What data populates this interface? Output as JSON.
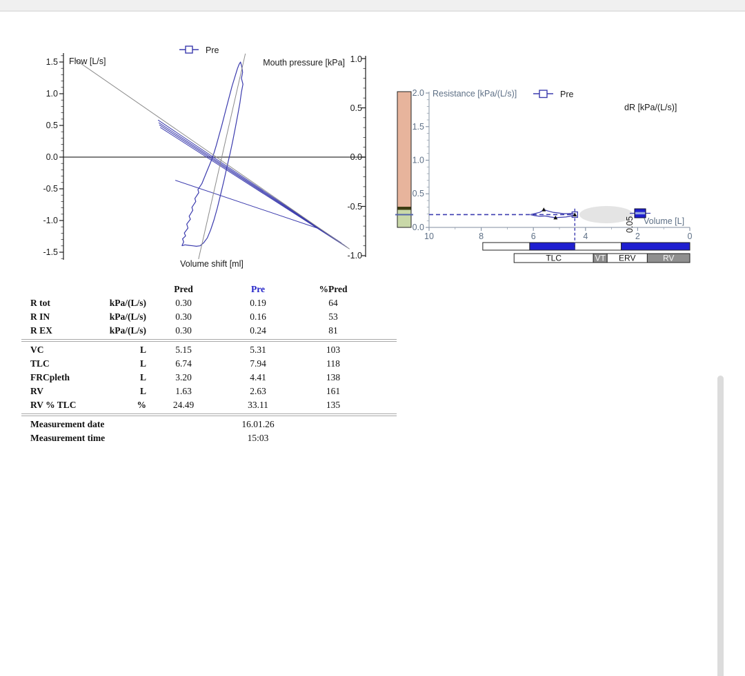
{
  "table": {
    "headers": {
      "pred": "Pred",
      "pre": "Pre",
      "pct": "%Pred"
    },
    "rows": [
      {
        "label": "R tot",
        "unit": "kPa/(L/s)",
        "pred": "0.30",
        "pre": "0.19",
        "pct": "64"
      },
      {
        "label": "R IN",
        "unit": "kPa/(L/s)",
        "pred": "0.30",
        "pre": "0.16",
        "pct": "53"
      },
      {
        "label": "R EX",
        "unit": "kPa/(L/s)",
        "pred": "0.30",
        "pre": "0.24",
        "pct": "81"
      },
      {
        "label": "VC",
        "unit": "L",
        "pred": "5.15",
        "pre": "5.31",
        "pct": "103"
      },
      {
        "label": "TLC",
        "unit": "L",
        "pred": "6.74",
        "pre": "7.94",
        "pct": "118"
      },
      {
        "label": "FRCpleth",
        "unit": "L",
        "pred": "3.20",
        "pre": "4.41",
        "pct": "138"
      },
      {
        "label": "RV",
        "unit": "L",
        "pred": "1.63",
        "pre": "2.63",
        "pct": "161"
      },
      {
        "label": "RV % TLC",
        "unit": "%",
        "pred": "24.49",
        "pre": "33.11",
        "pct": "135"
      }
    ],
    "meta": [
      {
        "label": "Measurement date",
        "value": "16.01.26"
      },
      {
        "label": "Measurement time",
        "value": "15:03"
      }
    ]
  },
  "chart_data": [
    {
      "type": "line",
      "name": "body-plethysmography-loops",
      "legend": "Pre",
      "x": {
        "label": "Volume shift [ml]",
        "note": "no numeric ticks shown; points use normalized 0-1 width",
        "range": [
          0,
          1
        ]
      },
      "y_left": {
        "label": "Flow [L/s]",
        "range": [
          -1.65,
          1.65
        ],
        "ticks": [
          "1.5",
          "1.0",
          "0.5",
          "0.0",
          "-0.5",
          "-1.0",
          "-1.5"
        ]
      },
      "y_right": {
        "label": "Mouth pressure [kPa]",
        "range": [
          -1.08,
          1.08
        ],
        "ticks": [
          "1.0",
          "0.5",
          "0.0",
          "-0.5",
          "-1.0"
        ]
      },
      "series": [
        {
          "name": "Pre mouth-pressure loop",
          "axis": "right",
          "color": "#3a3aad",
          "width": 1.2,
          "points": [
            [
              0.392,
              -0.9
            ],
            [
              0.398,
              -0.86
            ],
            [
              0.394,
              -0.83
            ],
            [
              0.404,
              -0.8
            ],
            [
              0.4,
              -0.77
            ],
            [
              0.412,
              -0.72
            ],
            [
              0.408,
              -0.68
            ],
            [
              0.42,
              -0.63
            ],
            [
              0.416,
              -0.6
            ],
            [
              0.428,
              -0.54
            ],
            [
              0.425,
              -0.51
            ],
            [
              0.438,
              -0.45
            ],
            [
              0.435,
              -0.42
            ],
            [
              0.448,
              -0.36
            ],
            [
              0.445,
              -0.33
            ],
            [
              0.458,
              -0.27
            ],
            [
              0.466,
              -0.21
            ],
            [
              0.474,
              -0.15
            ],
            [
              0.482,
              -0.09
            ],
            [
              0.49,
              -0.03
            ],
            [
              0.498,
              0.04
            ],
            [
              0.506,
              0.12
            ],
            [
              0.514,
              0.21
            ],
            [
              0.524,
              0.32
            ],
            [
              0.534,
              0.44
            ],
            [
              0.546,
              0.58
            ],
            [
              0.558,
              0.72
            ],
            [
              0.568,
              0.82
            ],
            [
              0.576,
              0.9
            ],
            [
              0.581,
              0.94
            ],
            [
              0.586,
              0.965
            ],
            [
              0.59,
              0.92
            ],
            [
              0.593,
              0.86
            ],
            [
              0.589,
              0.8
            ],
            [
              0.594,
              0.74
            ],
            [
              0.589,
              0.66
            ],
            [
              0.584,
              0.55
            ],
            [
              0.577,
              0.43
            ],
            [
              0.569,
              0.3
            ],
            [
              0.56,
              0.16
            ],
            [
              0.551,
              0.03
            ],
            [
              0.541,
              -0.1
            ],
            [
              0.531,
              -0.24
            ],
            [
              0.52,
              -0.38
            ],
            [
              0.509,
              -0.52
            ],
            [
              0.498,
              -0.64
            ],
            [
              0.487,
              -0.74
            ],
            [
              0.476,
              -0.82
            ],
            [
              0.464,
              -0.87
            ],
            [
              0.452,
              -0.9
            ],
            [
              0.44,
              -0.905
            ],
            [
              0.428,
              -0.9
            ],
            [
              0.414,
              -0.895
            ],
            [
              0.402,
              -0.89
            ],
            [
              0.392,
              -0.9
            ]
          ]
        },
        {
          "name": "Pre resistance loop line 1",
          "axis": "left",
          "color": "#3a3aad",
          "width": 1.0,
          "points": [
            [
              0.313,
              0.585
            ],
            [
              0.92,
              -1.355
            ]
          ]
        },
        {
          "name": "Pre resistance loop line 2",
          "axis": "left",
          "color": "#3a3aad",
          "width": 1.0,
          "points": [
            [
              0.315,
              0.545
            ],
            [
              0.93,
              -1.39
            ]
          ]
        },
        {
          "name": "Pre resistance loop line 3",
          "axis": "left",
          "color": "#3a3aad",
          "width": 1.0,
          "points": [
            [
              0.317,
              0.51
            ],
            [
              0.937,
              -1.415
            ]
          ]
        },
        {
          "name": "Pre resistance loop line 4",
          "axis": "left",
          "color": "#3a3aad",
          "width": 1.0,
          "points": [
            [
              0.32,
              0.47
            ],
            [
              0.944,
              -1.44
            ]
          ]
        },
        {
          "name": "Pre loop closing branch",
          "axis": "left",
          "color": "#3a3aad",
          "width": 1.0,
          "points": [
            [
              0.37,
              -0.365
            ],
            [
              0.84,
              -1.12
            ]
          ]
        },
        {
          "name": "fit line resistance",
          "axis": "left",
          "color": "#8a8a8a",
          "width": 1.0,
          "points": [
            [
              0.04,
              1.535
            ],
            [
              0.947,
              -1.45
            ]
          ]
        },
        {
          "name": "fit line pressure",
          "axis": "right",
          "color": "#8a8a8a",
          "width": 1.0,
          "points": [
            [
              0.447,
              -1.035
            ],
            [
              0.602,
              1.05
            ]
          ]
        }
      ]
    },
    {
      "type": "line",
      "name": "resistance-vs-volume",
      "legend": "Pre",
      "title": "Resistance [kPa/(L/s)]",
      "xlabel": "Volume [L]",
      "dr_label": "dR [kPa/(L/s)]",
      "dr_value": "0.05",
      "x_range": [
        10,
        0
      ],
      "y_range": [
        0,
        2
      ],
      "x_ticks": [
        "10",
        "8",
        "6",
        "4",
        "2",
        "0"
      ],
      "y_ticks": [
        "0.0",
        "0.5",
        "1.0",
        "1.5",
        "2.0"
      ],
      "r_tot_value": 0.19,
      "frc_marker_volume": 4.41,
      "loop_points": [
        [
          6.12,
          0.19
        ],
        [
          5.95,
          0.205
        ],
        [
          5.75,
          0.225
        ],
        [
          5.6,
          0.265
        ],
        [
          5.45,
          0.245
        ],
        [
          5.25,
          0.225
        ],
        [
          5.05,
          0.215
        ],
        [
          4.85,
          0.205
        ],
        [
          4.65,
          0.205
        ],
        [
          4.5,
          0.21
        ],
        [
          4.41,
          0.195
        ],
        [
          4.48,
          0.175
        ],
        [
          4.6,
          0.165
        ],
        [
          4.75,
          0.155
        ],
        [
          4.95,
          0.15
        ],
        [
          5.15,
          0.145
        ],
        [
          5.35,
          0.155
        ],
        [
          5.55,
          0.17
        ],
        [
          5.75,
          0.165
        ],
        [
          5.95,
          0.175
        ],
        [
          6.12,
          0.19
        ]
      ],
      "loop_markers": [
        [
          5.6,
          0.265
        ],
        [
          5.15,
          0.145
        ],
        [
          4.41,
          0.19
        ]
      ],
      "normal_band": {
        "threshold": 0.3,
        "above_color": "#e7b49c",
        "below_color": "#c9d8a8",
        "separator_color": "#3c3c12"
      },
      "volume_bar_measured": {
        "boundaries": [
          7.94,
          6.14,
          4.41,
          2.63,
          0
        ],
        "colors": [
          "#ffffff",
          "#1f1fd0",
          "#ffffff",
          "#1f1fd0"
        ]
      },
      "volume_bar_predicted": {
        "boundaries": [
          6.74,
          3.7,
          3.17,
          1.63,
          0
        ],
        "colors": [
          "#ffffff",
          "#8f8f8f",
          "#ffffff",
          "#8f8f8f"
        ],
        "labels": [
          "TLC",
          "VT",
          "ERV",
          "RV"
        ]
      }
    }
  ]
}
